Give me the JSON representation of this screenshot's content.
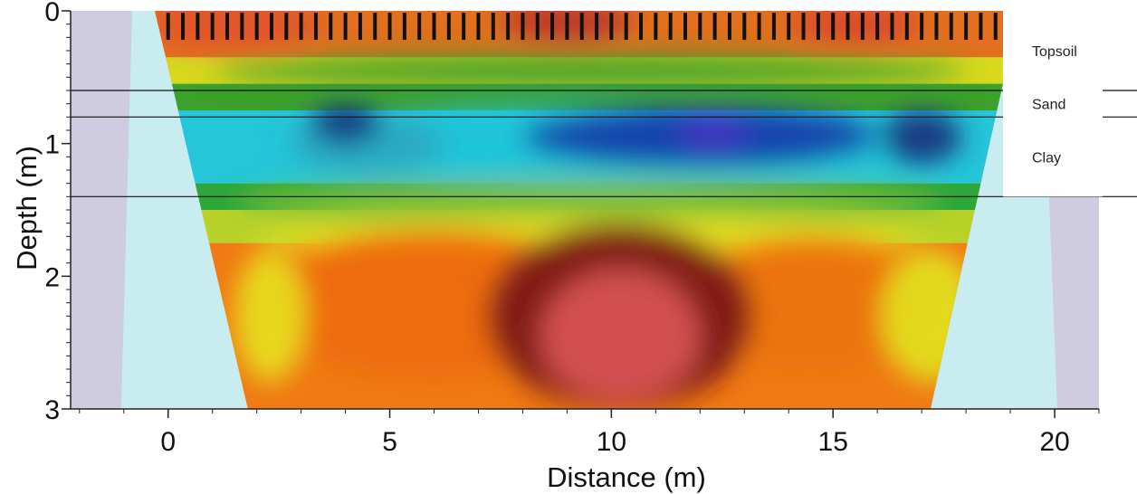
{
  "chart_data": {
    "type": "heatmap",
    "xlabel": "Distance (m)",
    "ylabel": "Depth (m)",
    "xlim": [
      -2.2,
      21
    ],
    "ylim": [
      0,
      3
    ],
    "y_inverted": true,
    "xticks": [
      0,
      5,
      10,
      15,
      20
    ],
    "yticks": [
      0,
      1,
      2,
      3
    ],
    "grid": false,
    "electrodes": {
      "start": 0,
      "end": 19,
      "count": 58,
      "color": "#111111"
    },
    "section_trapezoid": {
      "top": [
        -0.3,
        19.2
      ],
      "bottom": [
        1.8,
        17.2
      ]
    },
    "layers": [
      {
        "name": "Topsoil",
        "top": 0.0,
        "bottom": 0.6
      },
      {
        "name": "Sand",
        "top": 0.6,
        "bottom": 0.8
      },
      {
        "name": "Clay",
        "top": 0.8,
        "bottom": 1.4
      }
    ],
    "resistivity_zones": [
      {
        "x": 1.5,
        "y": 0.1,
        "w": 4,
        "h": 0.35,
        "color": "#e2502a"
      },
      {
        "x": 9.0,
        "y": 0.08,
        "w": 3,
        "h": 0.3,
        "color": "#b8332a"
      },
      {
        "x": 15.5,
        "y": 0.1,
        "w": 3,
        "h": 0.3,
        "color": "#d9482a"
      },
      {
        "x": 9.5,
        "y": 0.45,
        "w": 17,
        "h": 0.25,
        "color": "#3a9c2a"
      },
      {
        "x": 9.5,
        "y": 1.0,
        "w": 14,
        "h": 0.55,
        "color": "#20c4d8"
      },
      {
        "x": 4.5,
        "y": 1.0,
        "w": 3.5,
        "h": 0.45,
        "color": "#2aa8c0"
      },
      {
        "x": 12.0,
        "y": 0.95,
        "w": 8,
        "h": 0.45,
        "color": "#1838a8"
      },
      {
        "x": 4.0,
        "y": 0.85,
        "w": 1.6,
        "h": 0.3,
        "color": "#15307c"
      },
      {
        "x": 17.0,
        "y": 0.95,
        "w": 1.8,
        "h": 0.4,
        "color": "#15307c"
      },
      {
        "x": 12.3,
        "y": 0.92,
        "w": 1.6,
        "h": 0.3,
        "color": "#4038c0"
      },
      {
        "x": 9.5,
        "y": 1.45,
        "w": 16,
        "h": 0.35,
        "color": "#7ec038"
      },
      {
        "x": 9.5,
        "y": 1.7,
        "w": 15,
        "h": 0.3,
        "color": "#e6e01e"
      },
      {
        "x": 6.0,
        "y": 2.2,
        "w": 8,
        "h": 1.1,
        "color": "#ee6a10"
      },
      {
        "x": 14.5,
        "y": 2.2,
        "w": 6,
        "h": 1.0,
        "color": "#ec7410"
      },
      {
        "x": 10.2,
        "y": 2.3,
        "w": 6,
        "h": 1.4,
        "color": "#7a1414"
      },
      {
        "x": 10.2,
        "y": 2.45,
        "w": 3.6,
        "h": 1.0,
        "color": "#d85454"
      },
      {
        "x": 17.2,
        "y": 2.3,
        "w": 2.2,
        "h": 1.0,
        "color": "#e2e21e"
      },
      {
        "x": 2.3,
        "y": 2.3,
        "w": 1.6,
        "h": 1.0,
        "color": "#e6e01e"
      }
    ]
  }
}
